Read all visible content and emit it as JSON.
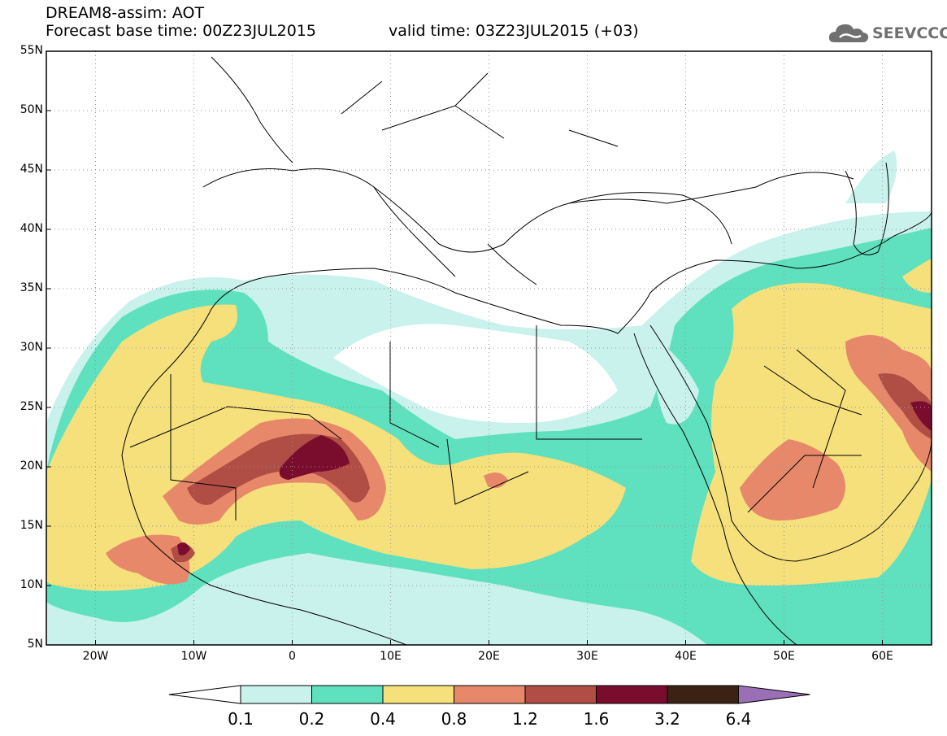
{
  "title": {
    "line1": "DREAM8-assim: AOT",
    "line2": "Forecast base time: 00Z23JUL2015",
    "valid": "valid time: 03Z23JUL2015 (+03)"
  },
  "logo": {
    "text": "SEEVCCC",
    "icon": "cloud-icon"
  },
  "map": {
    "lat_labels": [
      "55N",
      "50N",
      "45N",
      "40N",
      "35N",
      "30N",
      "25N",
      "20N",
      "15N",
      "10N",
      "5N"
    ],
    "lon_labels": [
      "20W",
      "10W",
      "0",
      "10E",
      "20E",
      "30E",
      "40E",
      "50E",
      "60E"
    ],
    "lon_range": [
      -25,
      65
    ],
    "lat_range": [
      5,
      55
    ]
  },
  "colorbar": {
    "labels": [
      "0.1",
      "0.2",
      "0.4",
      "0.8",
      "1.2",
      "1.6",
      "3.2",
      "6.4"
    ],
    "colors": [
      "#ffffff",
      "#c9f2ec",
      "#5fe0bf",
      "#f5e07c",
      "#e8886b",
      "#b04d44",
      "#7a0c2e",
      "#3b2215",
      "#9b6fb5"
    ]
  }
}
